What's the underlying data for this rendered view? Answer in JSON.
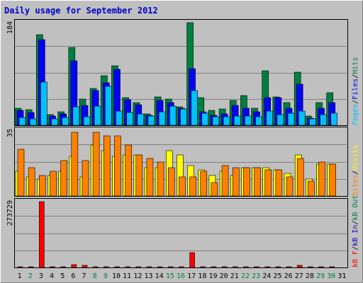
{
  "title": "Daily usage for September 2012",
  "colors": {
    "background": "#c0c0c0",
    "frame": "#808080",
    "title_text": "#0000c8",
    "grid": "#808080",
    "hits": "#008040",
    "files": "#0000ff",
    "pages": "#00c0ff",
    "visits": "#ffff00",
    "sites": "#ff8000",
    "kbf": "#ff0000",
    "kbin": "#0000c8",
    "kbout": "#008040",
    "day_weekday": "#000000",
    "day_weekend": "#008040"
  },
  "chart_data": [
    {
      "type": "bar",
      "panel": "hits_files_pages",
      "ymax_label": "184",
      "ylim": [
        0,
        184
      ],
      "legend": [
        {
          "label": "Pages",
          "color": "#00c0ff"
        },
        {
          "label": "Files",
          "color": "#0000ff"
        },
        {
          "label": "Hits",
          "color": "#008040"
        }
      ],
      "categories": [
        "1",
        "2",
        "3",
        "4",
        "5",
        "6",
        "7",
        "8",
        "9",
        "10",
        "11",
        "12",
        "13",
        "14",
        "15",
        "16",
        "17",
        "18",
        "19",
        "20",
        "21",
        "22",
        "23",
        "24",
        "25",
        "26",
        "27",
        "28",
        "29",
        "30",
        "31"
      ],
      "series": [
        {
          "name": "Hits",
          "values": [
            30,
            28,
            163,
            19,
            24,
            139,
            47,
            66,
            89,
            106,
            49,
            41,
            20,
            51,
            47,
            33,
            184,
            49,
            27,
            29,
            44,
            53,
            30,
            98,
            51,
            40,
            95,
            16,
            40,
            58,
            0
          ]
        },
        {
          "name": "Files",
          "values": [
            27,
            23,
            154,
            16,
            20,
            115,
            35,
            62,
            76,
            100,
            46,
            37,
            18,
            45,
            40,
            30,
            102,
            24,
            18,
            20,
            36,
            31,
            24,
            49,
            49,
            30,
            73,
            13,
            30,
            40,
            0
          ]
        },
        {
          "name": "Pages",
          "values": [
            14,
            12,
            78,
            11,
            14,
            33,
            15,
            34,
            70,
            26,
            23,
            20,
            17,
            24,
            34,
            29,
            62,
            22,
            15,
            15,
            17,
            16,
            15,
            25,
            19,
            22,
            25,
            11,
            19,
            22,
            0
          ]
        }
      ]
    },
    {
      "type": "bar",
      "panel": "visits_sites",
      "ymax_label": "35",
      "ylim": [
        0,
        35
      ],
      "legend": [
        {
          "label": "Sites",
          "color": "#ff8000"
        },
        {
          "label": "Visits",
          "color": "#ffff00"
        }
      ],
      "categories": [
        "1",
        "2",
        "3",
        "4",
        "5",
        "6",
        "7",
        "8",
        "9",
        "10",
        "11",
        "12",
        "13",
        "14",
        "15",
        "16",
        "17",
        "18",
        "19",
        "20",
        "21",
        "22",
        "23",
        "24",
        "25",
        "26",
        "27",
        "28",
        "29",
        "30",
        "31"
      ],
      "series": [
        {
          "name": "Visits",
          "values": [
            13,
            10,
            9,
            11,
            13,
            21,
            10,
            27,
            24,
            21,
            22,
            22,
            15,
            15,
            24,
            22,
            16,
            14,
            11,
            13,
            11,
            15,
            15,
            15,
            14,
            12,
            22,
            9,
            17,
            17,
            0
          ]
        },
        {
          "name": "Sites",
          "values": [
            25,
            15,
            11,
            13,
            19,
            34,
            19,
            34,
            32,
            32,
            27,
            22,
            20,
            18,
            15,
            10,
            10,
            13,
            7,
            16,
            15,
            15,
            15,
            14,
            14,
            10,
            20,
            8,
            18,
            17,
            0
          ]
        }
      ]
    },
    {
      "type": "bar",
      "panel": "kbytes",
      "ymax_label": "273729",
      "ylim": [
        0,
        273729
      ],
      "legend": [
        {
          "label": "kB F",
          "color": "#ff0000"
        },
        {
          "label": "kB In",
          "color": "#0000c8"
        },
        {
          "label": "kB Out",
          "color": "#008040"
        }
      ],
      "categories": [
        "1",
        "2",
        "3",
        "4",
        "5",
        "6",
        "7",
        "8",
        "9",
        "10",
        "11",
        "12",
        "13",
        "14",
        "15",
        "16",
        "17",
        "18",
        "19",
        "20",
        "21",
        "22",
        "23",
        "24",
        "25",
        "26",
        "27",
        "28",
        "29",
        "30",
        "31"
      ],
      "series": [
        {
          "name": "kB F",
          "values": [
            2500,
            2500,
            273729,
            2500,
            2500,
            10500,
            9000,
            4000,
            3000,
            2500,
            2500,
            2500,
            2500,
            2500,
            2500,
            2500,
            62000,
            2500,
            2500,
            2500,
            2500,
            2500,
            2500,
            2500,
            2500,
            2500,
            9000,
            2500,
            2500,
            2500,
            0
          ]
        }
      ]
    }
  ],
  "day_labels": [
    {
      "text": "1",
      "weekend": false
    },
    {
      "text": "2",
      "weekend": true
    },
    {
      "text": "3",
      "weekend": false
    },
    {
      "text": "4",
      "weekend": false
    },
    {
      "text": "5",
      "weekend": false
    },
    {
      "text": "6",
      "weekend": false
    },
    {
      "text": "7",
      "weekend": false
    },
    {
      "text": "8",
      "weekend": true
    },
    {
      "text": "9",
      "weekend": true
    },
    {
      "text": "10",
      "weekend": false
    },
    {
      "text": "11",
      "weekend": false
    },
    {
      "text": "12",
      "weekend": false
    },
    {
      "text": "13",
      "weekend": false
    },
    {
      "text": "14",
      "weekend": false
    },
    {
      "text": "15",
      "weekend": true
    },
    {
      "text": "16",
      "weekend": true
    },
    {
      "text": "17",
      "weekend": false
    },
    {
      "text": "18",
      "weekend": false
    },
    {
      "text": "19",
      "weekend": false
    },
    {
      "text": "20",
      "weekend": false
    },
    {
      "text": "21",
      "weekend": false
    },
    {
      "text": "22",
      "weekend": true
    },
    {
      "text": "23",
      "weekend": true
    },
    {
      "text": "24",
      "weekend": false
    },
    {
      "text": "25",
      "weekend": false
    },
    {
      "text": "26",
      "weekend": false
    },
    {
      "text": "27",
      "weekend": false
    },
    {
      "text": "28",
      "weekend": false
    },
    {
      "text": "29",
      "weekend": true
    },
    {
      "text": "30",
      "weekend": true
    },
    {
      "text": "31",
      "weekend": false
    }
  ]
}
